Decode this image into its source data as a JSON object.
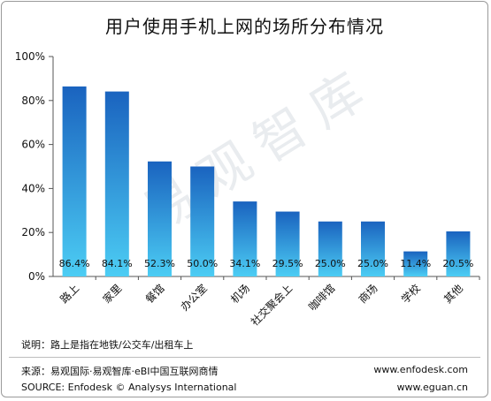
{
  "title": "用户使用手机上网的场所分布情况",
  "watermark": "易观智库",
  "note": "说明：路上是指在地铁/公交车/出租车上",
  "source_cn": "来源：易观国际·易观智库·eBI中国互联网商情",
  "source_en": "SOURCE: Enfodesk © Analysys International",
  "site1": "www.enfodesk.com",
  "site2": "www.eguan.cn",
  "colors": {
    "bar_top": "#1a63bf",
    "bar_bottom": "#4ccdf4",
    "axis": "#555555"
  },
  "chart_data": {
    "type": "bar",
    "categories": [
      "路上",
      "家里",
      "餐馆",
      "办公室",
      "机场",
      "社交聚会上",
      "咖啡馆",
      "商场",
      "学校",
      "其他"
    ],
    "values": [
      86.4,
      84.1,
      52.3,
      50.0,
      34.1,
      29.5,
      25.0,
      25.0,
      11.4,
      20.5
    ],
    "data_labels": [
      "86.4%",
      "84.1%",
      "52.3%",
      "50.0%",
      "34.1%",
      "29.5%",
      "25.0%",
      "25.0%",
      "11.4%",
      "20.5%"
    ],
    "y_ticks": [
      "0%",
      "20%",
      "40%",
      "60%",
      "80%",
      "100%"
    ],
    "ylim": [
      0,
      100
    ],
    "grid": false,
    "title": "用户使用手机上网的场所分布情况"
  }
}
